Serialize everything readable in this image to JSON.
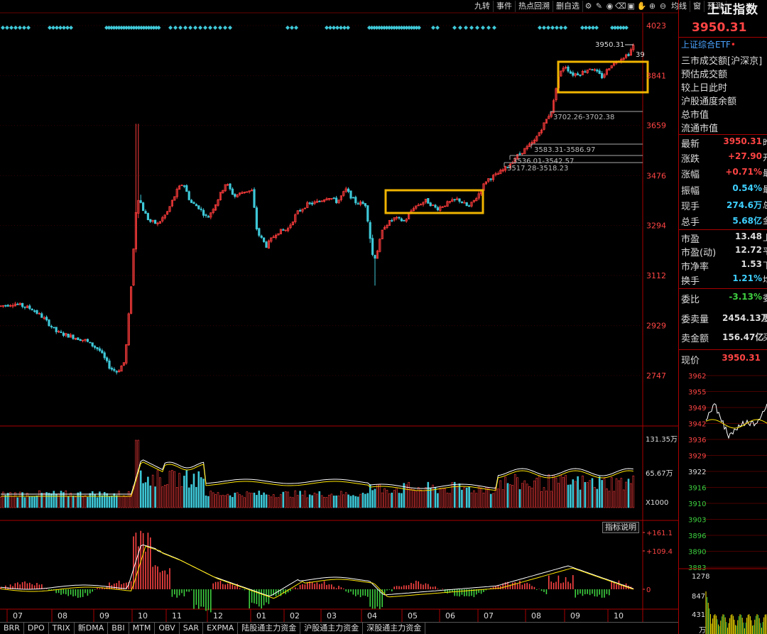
{
  "toolbar": {
    "buttons": [
      "九转",
      "事件",
      "热点回溯",
      "删自选",
      "均线",
      "窗",
      "预测"
    ],
    "icons": [
      "settings-icon",
      "pen-icon",
      "eye-icon",
      "trash-icon",
      "zoom-box-icon",
      "hand-icon",
      "zoom-in-icon",
      "zoom-out-icon"
    ]
  },
  "main_chart": {
    "price_ticks": [
      "4023",
      "3841",
      "3659",
      "3476",
      "3294",
      "3112",
      "2929",
      "2747"
    ],
    "last_price_label": "3950.31",
    "last_price_cut": "39",
    "annotations": [
      "3702.26-3702.38",
      "3583.31-3586.97",
      "3536.01-3542.57",
      "3517.28-3518.23"
    ],
    "highlight_color": "#f0b400",
    "up_color": "#ff3c3c",
    "down_color": "#3ec8d8"
  },
  "volume_chart": {
    "ticks": [
      "131.35万",
      "65.67万"
    ],
    "unit": "X1000"
  },
  "indicator_chart": {
    "ticks": [
      "+161.1",
      "+109.4",
      "0"
    ],
    "help_label": "指标说明"
  },
  "x_axis": {
    "months": [
      "07",
      "08",
      "09",
      "10",
      "11",
      "12",
      "01",
      "02",
      "03",
      "04",
      "05",
      "06",
      "07",
      "08",
      "09",
      "10"
    ]
  },
  "bottom_tabs": [
    "BRR",
    "DPO",
    "TRIX",
    "新DMA",
    "BBI",
    "MTM",
    "OBV",
    "SAR",
    "EXPMA",
    "陆股通主力资金",
    "沪股通主力资金",
    "深股通主力资金"
  ],
  "side_panel": {
    "title": "上证指数",
    "price": "3950.31",
    "etf": "上证综合ETF",
    "info_labels": [
      "三市成交额[沪深京]",
      "预估成交额",
      "较上日此时",
      "沪股通度余额",
      "总市值",
      "流通市值"
    ],
    "quote_rows": [
      {
        "label": "最新",
        "value": "3950.31",
        "tail": "昨",
        "color": "#ff4444"
      },
      {
        "label": "涨跌",
        "value": "+27.90",
        "tail": "开",
        "color": "#ff4444"
      },
      {
        "label": "涨幅",
        "value": "+0.71%",
        "tail": "最",
        "color": "#ff4444"
      },
      {
        "label": "振幅",
        "value": "0.54%",
        "tail": "最",
        "color": "#3ed0ff"
      },
      {
        "label": "现手",
        "value": "274.6万",
        "tail": "总",
        "color": "#3ed0ff"
      },
      {
        "label": "总手",
        "value": "5.68亿",
        "tail": "金",
        "color": "#3ed0ff"
      }
    ],
    "val_rows": [
      {
        "label": "市盈",
        "value": "13.48",
        "tail": "上",
        "color": "#dddddd"
      },
      {
        "label": "市盈(动)",
        "value": "12.72",
        "tail": "平",
        "color": "#dddddd"
      },
      {
        "label": "市净率",
        "value": "1.53",
        "tail": "下",
        "color": "#dddddd"
      },
      {
        "label": "换手",
        "value": "1.21%",
        "tail": "均",
        "color": "#3ed0ff"
      }
    ],
    "order_rows": [
      {
        "label": "委比",
        "value": "-3.13%",
        "tail": "委",
        "color": "#3ed040"
      },
      {
        "label": "委卖量",
        "value": "2454.13万",
        "tail": "委",
        "color": "#dddddd"
      },
      {
        "label": "卖金额",
        "value": "156.47亿",
        "tail": "买",
        "color": "#dddddd"
      }
    ],
    "mini_price_label": "现价",
    "mini_price": "3950.31",
    "mini_ticks": [
      "3962",
      "3955",
      "3949",
      "3942",
      "3936",
      "3929",
      "3922",
      "3916",
      "3910",
      "3903",
      "3896",
      "3890",
      "3883"
    ],
    "mini_vol_ticks": [
      "1278",
      "847",
      "431",
      "万"
    ]
  }
}
